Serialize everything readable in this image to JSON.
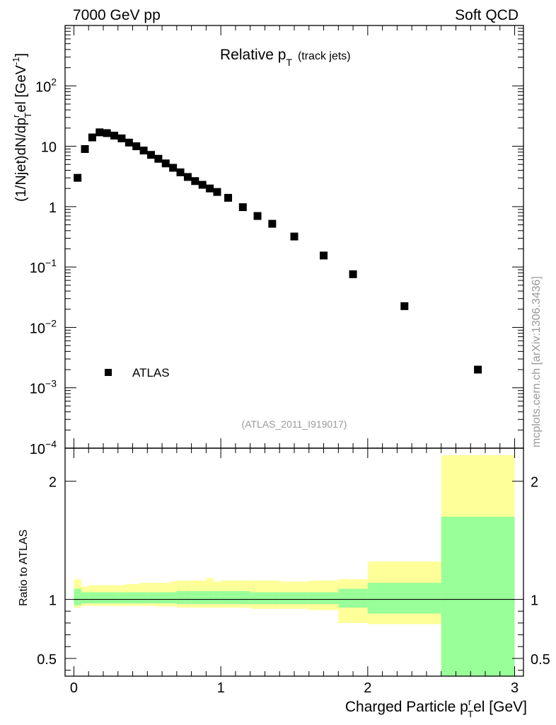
{
  "header": {
    "left": "7000 GeV pp",
    "right": "Soft QCD"
  },
  "watermark": "mcplots.cern.ch [arXiv:1306.3436]",
  "analysis_id": "(ATLAS_2011_I919017)",
  "colors": {
    "green_band": "#99ff99",
    "yellow_band": "#ffff99",
    "axis": "#000000",
    "muted_text": "#999999"
  },
  "chart_data": [
    {
      "type": "scatter",
      "title": "Relative pT (track jets)",
      "title_parts": {
        "main": "Relative p",
        "sub": "T",
        "note": "(track jets)"
      },
      "ylabel": "(1/Njet)dN/dpTrel [GeV-1]",
      "ylabel_parts": {
        "a": "(1/Njet)dN/dp",
        "sup": "r",
        "sub": "T",
        "b": "el [GeV",
        "sup2": "-1",
        "c": "]"
      },
      "xlim": [
        -0.06,
        3.06
      ],
      "ylim": [
        0.0001,
        1000
      ],
      "yscale": "log",
      "ytick_labels": [
        {
          "v": 0.0001,
          "base": "10",
          "exp": "−4"
        },
        {
          "v": 0.001,
          "base": "10",
          "exp": "−3"
        },
        {
          "v": 0.01,
          "base": "10",
          "exp": "−2"
        },
        {
          "v": 0.1,
          "base": "10",
          "exp": "−1"
        },
        {
          "v": 1,
          "base": "1",
          "exp": ""
        },
        {
          "v": 10,
          "base": "10",
          "exp": ""
        },
        {
          "v": 100,
          "base": "10",
          "exp": "2"
        }
      ],
      "legend": {
        "label": "ATLAS",
        "position": "bottom-left"
      },
      "series": [
        {
          "name": "ATLAS",
          "x": [
            0.025,
            0.075,
            0.125,
            0.175,
            0.225,
            0.275,
            0.325,
            0.375,
            0.425,
            0.475,
            0.525,
            0.575,
            0.625,
            0.675,
            0.725,
            0.775,
            0.825,
            0.875,
            0.925,
            0.975,
            1.05,
            1.15,
            1.25,
            1.35,
            1.5,
            1.7,
            1.9,
            2.25,
            2.75
          ],
          "y": [
            3.0,
            9.0,
            14.0,
            17.0,
            16.5,
            15.0,
            13.5,
            11.5,
            10.0,
            8.5,
            7.2,
            6.2,
            5.2,
            4.4,
            3.7,
            3.1,
            2.65,
            2.3,
            2.0,
            1.75,
            1.4,
            0.98,
            0.7,
            0.52,
            0.32,
            0.155,
            0.076,
            0.0225,
            0.002
          ]
        }
      ]
    },
    {
      "type": "area",
      "title": "Ratio to ATLAS",
      "ylabel": "Ratio to ATLAS",
      "xlabel": "Charged Particle pTrel [GeV]",
      "xlabel_parts": {
        "a": "Charged Particle p",
        "sup": "r",
        "sub": "T",
        "b": "el [GeV]"
      },
      "xlim": [
        -0.06,
        3.06
      ],
      "ylim": [
        0.35,
        2.28
      ],
      "x_tick_labels": [
        "0",
        "1",
        "2",
        "3"
      ],
      "x_tick_values": [
        0,
        1,
        2,
        3
      ],
      "y_tick_labels": [
        "0.5",
        "1",
        "2"
      ],
      "y_tick_values": [
        0.5,
        1,
        2
      ],
      "reference_line": 1.0,
      "bins": {
        "edges": [
          0,
          0.05,
          0.1,
          0.15,
          0.2,
          0.25,
          0.3,
          0.35,
          0.4,
          0.45,
          0.5,
          0.55,
          0.6,
          0.65,
          0.7,
          0.75,
          0.8,
          0.85,
          0.9,
          0.95,
          1.0,
          1.1,
          1.2,
          1.3,
          1.4,
          1.6,
          1.8,
          2.0,
          2.5,
          3.0
        ],
        "stat_up": [
          1.09,
          1.06,
          1.06,
          1.06,
          1.06,
          1.06,
          1.06,
          1.06,
          1.06,
          1.06,
          1.06,
          1.06,
          1.06,
          1.06,
          1.07,
          1.07,
          1.07,
          1.07,
          1.07,
          1.07,
          1.07,
          1.07,
          1.06,
          1.06,
          1.06,
          1.06,
          1.09,
          1.14,
          1.7
        ],
        "stat_down": [
          0.95,
          0.965,
          0.965,
          0.965,
          0.965,
          0.965,
          0.965,
          0.965,
          0.965,
          0.965,
          0.965,
          0.965,
          0.965,
          0.965,
          0.96,
          0.96,
          0.96,
          0.96,
          0.96,
          0.96,
          0.96,
          0.96,
          0.96,
          0.96,
          0.96,
          0.96,
          0.93,
          0.88,
          0.3
        ],
        "tot_up": [
          1.17,
          1.11,
          1.12,
          1.12,
          1.12,
          1.12,
          1.12,
          1.13,
          1.13,
          1.14,
          1.14,
          1.14,
          1.14,
          1.15,
          1.16,
          1.16,
          1.16,
          1.16,
          1.18,
          1.15,
          1.16,
          1.16,
          1.16,
          1.16,
          1.15,
          1.16,
          1.17,
          1.32,
          2.22
        ],
        "tot_down": [
          0.93,
          0.945,
          0.945,
          0.945,
          0.945,
          0.945,
          0.945,
          0.945,
          0.945,
          0.945,
          0.945,
          0.94,
          0.94,
          0.94,
          0.93,
          0.93,
          0.93,
          0.93,
          0.93,
          0.93,
          0.93,
          0.93,
          0.92,
          0.92,
          0.92,
          0.91,
          0.8,
          0.79,
          0.3
        ]
      }
    }
  ]
}
